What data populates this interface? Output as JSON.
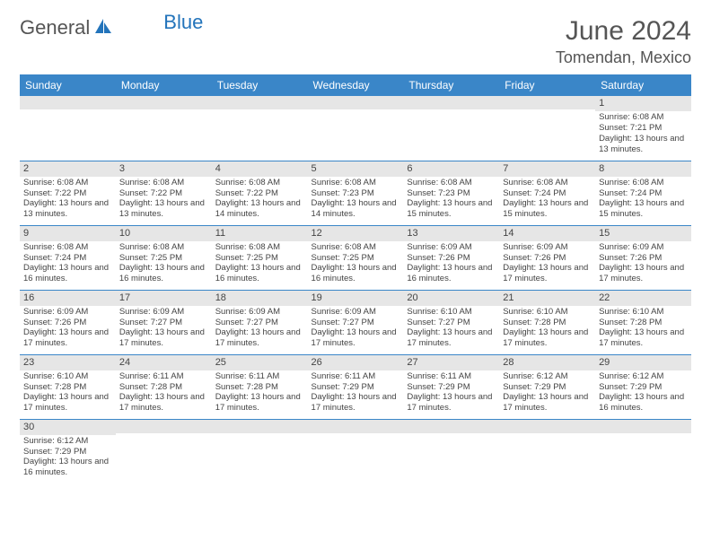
{
  "brand": {
    "part1": "General",
    "part2": "Blue"
  },
  "title": "June 2024",
  "location": "Tomendan, Mexico",
  "colors": {
    "header_bg": "#3a86c8",
    "header_fg": "#ffffff",
    "daynum_bg": "#e6e6e6",
    "text": "#444444",
    "rule": "#3a86c8",
    "brand_blue": "#2374bb"
  },
  "dayHeaders": [
    "Sunday",
    "Monday",
    "Tuesday",
    "Wednesday",
    "Thursday",
    "Friday",
    "Saturday"
  ],
  "cell_font_size_pt": 7,
  "header_font_size_pt": 9,
  "weeks": [
    [
      {
        "n": "",
        "t": ""
      },
      {
        "n": "",
        "t": ""
      },
      {
        "n": "",
        "t": ""
      },
      {
        "n": "",
        "t": ""
      },
      {
        "n": "",
        "t": ""
      },
      {
        "n": "",
        "t": ""
      },
      {
        "n": "1",
        "t": "Sunrise: 6:08 AM\nSunset: 7:21 PM\nDaylight: 13 hours and 13 minutes."
      }
    ],
    [
      {
        "n": "2",
        "t": "Sunrise: 6:08 AM\nSunset: 7:22 PM\nDaylight: 13 hours and 13 minutes."
      },
      {
        "n": "3",
        "t": "Sunrise: 6:08 AM\nSunset: 7:22 PM\nDaylight: 13 hours and 13 minutes."
      },
      {
        "n": "4",
        "t": "Sunrise: 6:08 AM\nSunset: 7:22 PM\nDaylight: 13 hours and 14 minutes."
      },
      {
        "n": "5",
        "t": "Sunrise: 6:08 AM\nSunset: 7:23 PM\nDaylight: 13 hours and 14 minutes."
      },
      {
        "n": "6",
        "t": "Sunrise: 6:08 AM\nSunset: 7:23 PM\nDaylight: 13 hours and 15 minutes."
      },
      {
        "n": "7",
        "t": "Sunrise: 6:08 AM\nSunset: 7:24 PM\nDaylight: 13 hours and 15 minutes."
      },
      {
        "n": "8",
        "t": "Sunrise: 6:08 AM\nSunset: 7:24 PM\nDaylight: 13 hours and 15 minutes."
      }
    ],
    [
      {
        "n": "9",
        "t": "Sunrise: 6:08 AM\nSunset: 7:24 PM\nDaylight: 13 hours and 16 minutes."
      },
      {
        "n": "10",
        "t": "Sunrise: 6:08 AM\nSunset: 7:25 PM\nDaylight: 13 hours and 16 minutes."
      },
      {
        "n": "11",
        "t": "Sunrise: 6:08 AM\nSunset: 7:25 PM\nDaylight: 13 hours and 16 minutes."
      },
      {
        "n": "12",
        "t": "Sunrise: 6:08 AM\nSunset: 7:25 PM\nDaylight: 13 hours and 16 minutes."
      },
      {
        "n": "13",
        "t": "Sunrise: 6:09 AM\nSunset: 7:26 PM\nDaylight: 13 hours and 16 minutes."
      },
      {
        "n": "14",
        "t": "Sunrise: 6:09 AM\nSunset: 7:26 PM\nDaylight: 13 hours and 17 minutes."
      },
      {
        "n": "15",
        "t": "Sunrise: 6:09 AM\nSunset: 7:26 PM\nDaylight: 13 hours and 17 minutes."
      }
    ],
    [
      {
        "n": "16",
        "t": "Sunrise: 6:09 AM\nSunset: 7:26 PM\nDaylight: 13 hours and 17 minutes."
      },
      {
        "n": "17",
        "t": "Sunrise: 6:09 AM\nSunset: 7:27 PM\nDaylight: 13 hours and 17 minutes."
      },
      {
        "n": "18",
        "t": "Sunrise: 6:09 AM\nSunset: 7:27 PM\nDaylight: 13 hours and 17 minutes."
      },
      {
        "n": "19",
        "t": "Sunrise: 6:09 AM\nSunset: 7:27 PM\nDaylight: 13 hours and 17 minutes."
      },
      {
        "n": "20",
        "t": "Sunrise: 6:10 AM\nSunset: 7:27 PM\nDaylight: 13 hours and 17 minutes."
      },
      {
        "n": "21",
        "t": "Sunrise: 6:10 AM\nSunset: 7:28 PM\nDaylight: 13 hours and 17 minutes."
      },
      {
        "n": "22",
        "t": "Sunrise: 6:10 AM\nSunset: 7:28 PM\nDaylight: 13 hours and 17 minutes."
      }
    ],
    [
      {
        "n": "23",
        "t": "Sunrise: 6:10 AM\nSunset: 7:28 PM\nDaylight: 13 hours and 17 minutes."
      },
      {
        "n": "24",
        "t": "Sunrise: 6:11 AM\nSunset: 7:28 PM\nDaylight: 13 hours and 17 minutes."
      },
      {
        "n": "25",
        "t": "Sunrise: 6:11 AM\nSunset: 7:28 PM\nDaylight: 13 hours and 17 minutes."
      },
      {
        "n": "26",
        "t": "Sunrise: 6:11 AM\nSunset: 7:29 PM\nDaylight: 13 hours and 17 minutes."
      },
      {
        "n": "27",
        "t": "Sunrise: 6:11 AM\nSunset: 7:29 PM\nDaylight: 13 hours and 17 minutes."
      },
      {
        "n": "28",
        "t": "Sunrise: 6:12 AM\nSunset: 7:29 PM\nDaylight: 13 hours and 17 minutes."
      },
      {
        "n": "29",
        "t": "Sunrise: 6:12 AM\nSunset: 7:29 PM\nDaylight: 13 hours and 16 minutes."
      }
    ],
    [
      {
        "n": "30",
        "t": "Sunrise: 6:12 AM\nSunset: 7:29 PM\nDaylight: 13 hours and 16 minutes."
      },
      {
        "n": "",
        "t": ""
      },
      {
        "n": "",
        "t": ""
      },
      {
        "n": "",
        "t": ""
      },
      {
        "n": "",
        "t": ""
      },
      {
        "n": "",
        "t": ""
      },
      {
        "n": "",
        "t": ""
      }
    ]
  ]
}
